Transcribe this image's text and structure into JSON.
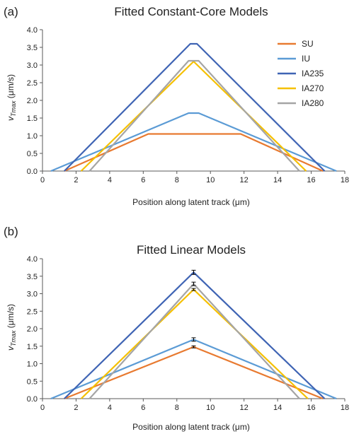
{
  "chart_data": [
    {
      "type": "line",
      "panel_label": "(a)",
      "title": "Fitted Constant-Core Models",
      "xlabel": "Position along latent track (μm)",
      "ylabel_main": "v",
      "ylabel_sub": "Tmax",
      "ylabel_unit": " (μm/s)",
      "xlim": [
        0,
        18
      ],
      "ylim": [
        0,
        4.0
      ],
      "x_ticks": [
        "0",
        "2",
        "4",
        "6",
        "8",
        "10",
        "12",
        "14",
        "16",
        "18"
      ],
      "y_ticks": [
        "0.0",
        "0.5",
        "1.0",
        "1.5",
        "2.0",
        "2.5",
        "3.0",
        "3.5",
        "4.0"
      ],
      "legend_position": "top-right",
      "series": [
        {
          "name": "SU",
          "color": "#E87A30",
          "points": [
            [
              1.3,
              0
            ],
            [
              6.3,
              1.05
            ],
            [
              11.8,
              1.05
            ],
            [
              16.7,
              0
            ]
          ]
        },
        {
          "name": "IU",
          "color": "#5B9BD5",
          "points": [
            [
              0.5,
              0
            ],
            [
              8.7,
              1.64
            ],
            [
              9.3,
              1.64
            ],
            [
              17.5,
              0
            ]
          ]
        },
        {
          "name": "IA235",
          "color": "#3F64B4",
          "points": [
            [
              1.3,
              0
            ],
            [
              8.8,
              3.6
            ],
            [
              9.2,
              3.6
            ],
            [
              16.8,
              0
            ]
          ]
        },
        {
          "name": "IA270",
          "color": "#F5C000",
          "points": [
            [
              2.3,
              0
            ],
            [
              9.0,
              3.1
            ],
            [
              15.7,
              0
            ]
          ]
        },
        {
          "name": "IA280",
          "color": "#A5A5A5",
          "points": [
            [
              2.8,
              0
            ],
            [
              8.7,
              3.12
            ],
            [
              9.3,
              3.12
            ],
            [
              15.3,
              0
            ]
          ]
        }
      ]
    },
    {
      "type": "line",
      "panel_label": "(b)",
      "title": "Fitted Linear Models",
      "xlabel": "Position along latent track (μm)",
      "ylabel_main": "v",
      "ylabel_sub": "Tmax",
      "ylabel_unit": " (μm/s)",
      "xlim": [
        0,
        18
      ],
      "ylim": [
        0,
        4.0
      ],
      "x_ticks": [
        "0",
        "2",
        "4",
        "6",
        "8",
        "10",
        "12",
        "14",
        "16",
        "18"
      ],
      "y_ticks": [
        "0.0",
        "0.5",
        "1.0",
        "1.5",
        "2.0",
        "2.5",
        "3.0",
        "3.5",
        "4.0"
      ],
      "series": [
        {
          "name": "SU",
          "color": "#E87A30",
          "points": [
            [
              1.3,
              0
            ],
            [
              9.0,
              1.48
            ],
            [
              16.7,
              0
            ]
          ],
          "error": 0.03
        },
        {
          "name": "IU",
          "color": "#5B9BD5",
          "points": [
            [
              0.5,
              0
            ],
            [
              9.0,
              1.69
            ],
            [
              17.5,
              0
            ]
          ],
          "error": 0.05
        },
        {
          "name": "IA235",
          "color": "#3F64B4",
          "points": [
            [
              1.3,
              0
            ],
            [
              9.0,
              3.61
            ],
            [
              16.8,
              0
            ]
          ],
          "error": 0.06
        },
        {
          "name": "IA270",
          "color": "#F5C000",
          "points": [
            [
              2.3,
              0
            ],
            [
              9.0,
              3.12
            ],
            [
              15.8,
              0
            ]
          ],
          "error": 0.03
        },
        {
          "name": "IA280",
          "color": "#A5A5A5",
          "points": [
            [
              2.8,
              0
            ],
            [
              9.0,
              3.28
            ],
            [
              15.3,
              0
            ]
          ],
          "error": 0.05
        }
      ]
    }
  ]
}
